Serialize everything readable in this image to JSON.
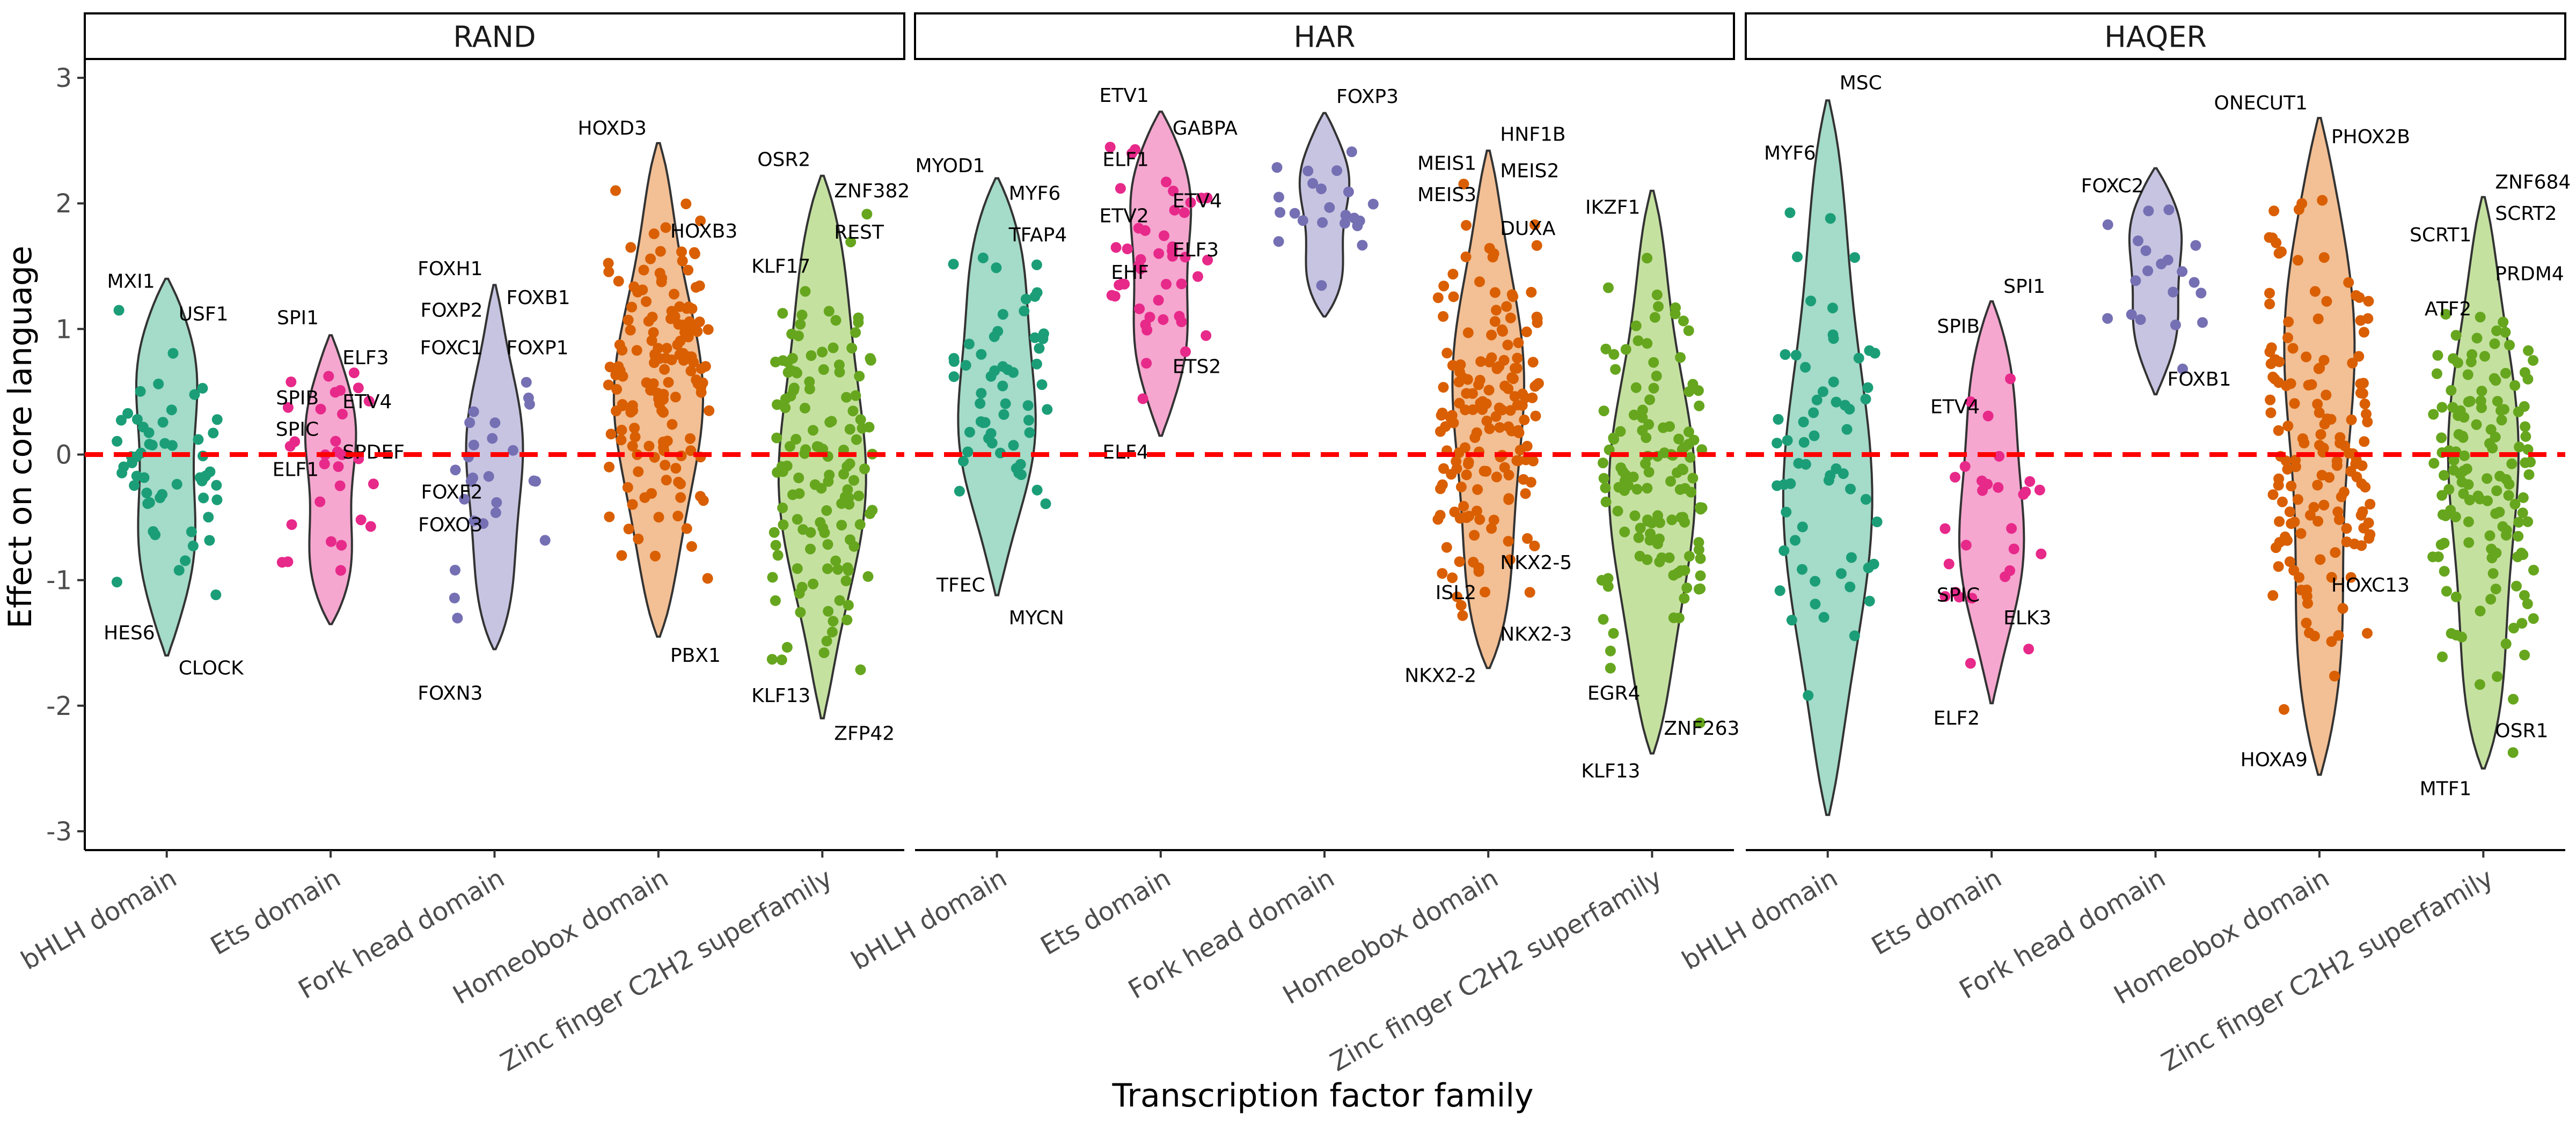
{
  "chart_data": {
    "type": "violin",
    "xlabel": "Transcription factor family",
    "ylabel": "Effect on core language",
    "ylim": [
      -3.15,
      3.15
    ],
    "yticks": [
      -3,
      -2,
      -1,
      0,
      1,
      2,
      3
    ],
    "reference_line": {
      "y": 0,
      "color": "#ff0000",
      "style": "dashed"
    },
    "grid": false,
    "categories": [
      "bHLH domain",
      "Ets domain",
      "Fork head domain",
      "Homeobox domain",
      "Zinc finger C2H2 superfamily"
    ],
    "colors": {
      "bHLH domain": "#1b9e77",
      "Ets domain": "#e7298a",
      "Fork head domain": "#7570b3",
      "Homeobox domain": "#d95f02",
      "Zinc finger C2H2 superfamily": "#66a61e"
    },
    "fill_colors": {
      "bHLH domain": "#a4dbc9",
      "Ets domain": "#f5a7cf",
      "Fork head domain": "#c7c4e2",
      "Homeobox domain": "#f3bf94",
      "Zinc finger C2H2 superfamily": "#c5e1a0"
    },
    "panels": [
      {
        "name": "RAND",
        "violins": [
          {
            "category": "bHLH domain",
            "range": [
              -1.6,
              1.4
            ],
            "points": 55,
            "labels": [
              {
                "text": "MXI1",
                "y": 1.38,
                "side": "left"
              },
              {
                "text": "USF1",
                "y": 1.12,
                "side": "right"
              },
              {
                "text": "HES6",
                "y": -1.42,
                "side": "left"
              },
              {
                "text": "CLOCK",
                "y": -1.7,
                "side": "right"
              }
            ]
          },
          {
            "category": "Ets domain",
            "range": [
              -1.35,
              0.95
            ],
            "points": 30,
            "labels": [
              {
                "text": "SPI1",
                "y": 1.09,
                "side": "left"
              },
              {
                "text": "ELF3",
                "y": 0.77,
                "side": "right"
              },
              {
                "text": "SPIB",
                "y": 0.45,
                "side": "left"
              },
              {
                "text": "ETV4",
                "y": 0.42,
                "side": "right"
              },
              {
                "text": "SPIC",
                "y": 0.2,
                "side": "left"
              },
              {
                "text": "SPDEF",
                "y": 0.02,
                "side": "right"
              },
              {
                "text": "ELF1",
                "y": -0.12,
                "side": "left"
              }
            ]
          },
          {
            "category": "Fork head domain",
            "range": [
              -1.55,
              1.35
            ],
            "points": 25,
            "labels": [
              {
                "text": "FOXH1",
                "y": 1.48,
                "side": "left"
              },
              {
                "text": "FOXB1",
                "y": 1.25,
                "side": "right"
              },
              {
                "text": "FOXP2",
                "y": 1.15,
                "side": "left"
              },
              {
                "text": "FOXC1",
                "y": 0.85,
                "side": "left"
              },
              {
                "text": "FOXP1",
                "y": 0.85,
                "side": "right"
              },
              {
                "text": "FOXF2",
                "y": -0.3,
                "side": "left"
              },
              {
                "text": "FOXO3",
                "y": -0.56,
                "side": "left"
              },
              {
                "text": "FOXN3",
                "y": -1.9,
                "side": "left"
              }
            ]
          },
          {
            "category": "Homeobox domain",
            "range": [
              -1.45,
              2.48
            ],
            "points": 150,
            "labels": [
              {
                "text": "HOXD3",
                "y": 2.6,
                "side": "left"
              },
              {
                "text": "HOXB3",
                "y": 1.78,
                "side": "right"
              },
              {
                "text": "PBX1",
                "y": -1.6,
                "side": "right"
              }
            ]
          },
          {
            "category": "Zinc finger C2H2 superfamily",
            "range": [
              -2.1,
              2.22
            ],
            "points": 130,
            "labels": [
              {
                "text": "OSR2",
                "y": 2.35,
                "side": "left"
              },
              {
                "text": "ZNF382",
                "y": 2.1,
                "side": "right"
              },
              {
                "text": "REST",
                "y": 1.77,
                "side": "right"
              },
              {
                "text": "KLF17",
                "y": 1.5,
                "side": "left"
              },
              {
                "text": "KLF13",
                "y": -1.92,
                "side": "left"
              },
              {
                "text": "ZFP42",
                "y": -2.22,
                "side": "right"
              }
            ]
          }
        ]
      },
      {
        "name": "HAR",
        "violins": [
          {
            "category": "bHLH domain",
            "range": [
              -1.12,
              2.2
            ],
            "points": 55,
            "labels": [
              {
                "text": "MYOD1",
                "y": 2.3,
                "side": "left"
              },
              {
                "text": "MYF6",
                "y": 2.08,
                "side": "right"
              },
              {
                "text": "TFAP4",
                "y": 1.75,
                "side": "right"
              },
              {
                "text": "TFEC",
                "y": -1.04,
                "side": "left"
              },
              {
                "text": "MYCN",
                "y": -1.3,
                "side": "right"
              }
            ]
          },
          {
            "category": "Ets domain",
            "range": [
              0.15,
              2.73
            ],
            "points": 45,
            "labels": [
              {
                "text": "ETV1",
                "y": 2.86,
                "side": "left"
              },
              {
                "text": "GABPA",
                "y": 2.6,
                "side": "right"
              },
              {
                "text": "ELF1",
                "y": 2.35,
                "side": "left"
              },
              {
                "text": "ETV4",
                "y": 2.02,
                "side": "right"
              },
              {
                "text": "ETV2",
                "y": 1.9,
                "side": "left"
              },
              {
                "text": "ELF3",
                "y": 1.63,
                "side": "right"
              },
              {
                "text": "EHF",
                "y": 1.45,
                "side": "left"
              },
              {
                "text": "ETS2",
                "y": 0.7,
                "side": "right"
              },
              {
                "text": "ELF4",
                "y": 0.02,
                "side": "left"
              }
            ]
          },
          {
            "category": "Fork head domain",
            "range": [
              1.1,
              2.72
            ],
            "points": 22,
            "labels": [
              {
                "text": "FOXP3",
                "y": 2.85,
                "side": "right"
              }
            ]
          },
          {
            "category": "Homeobox domain",
            "range": [
              -1.7,
              2.42
            ],
            "points": 160,
            "labels": [
              {
                "text": "HNF1B",
                "y": 2.55,
                "side": "right"
              },
              {
                "text": "MEIS1",
                "y": 2.32,
                "side": "left"
              },
              {
                "text": "MEIS2",
                "y": 2.26,
                "side": "right"
              },
              {
                "text": "MEIS3",
                "y": 2.07,
                "side": "left"
              },
              {
                "text": "DUXA",
                "y": 1.8,
                "side": "right"
              },
              {
                "text": "NKX2-5",
                "y": -0.86,
                "side": "right"
              },
              {
                "text": "ISL2",
                "y": -1.1,
                "side": "left"
              },
              {
                "text": "NKX2-3",
                "y": -1.43,
                "side": "right"
              },
              {
                "text": "NKX2-2",
                "y": -1.76,
                "side": "left"
              }
            ]
          },
          {
            "category": "Zinc finger C2H2 superfamily",
            "range": [
              -2.38,
              2.1
            ],
            "points": 125,
            "labels": [
              {
                "text": "IKZF1",
                "y": 1.97,
                "side": "left"
              },
              {
                "text": "EGR4",
                "y": -1.9,
                "side": "left"
              },
              {
                "text": "ZNF263",
                "y": -2.18,
                "side": "right"
              },
              {
                "text": "KLF13",
                "y": -2.52,
                "side": "left"
              }
            ]
          }
        ]
      },
      {
        "name": "HAQER",
        "violins": [
          {
            "category": "bHLH domain",
            "range": [
              -2.87,
              2.82
            ],
            "points": 60,
            "labels": [
              {
                "text": "MSC",
                "y": 2.96,
                "side": "right"
              },
              {
                "text": "MYF6",
                "y": 2.4,
                "side": "left"
              }
            ]
          },
          {
            "category": "Ets domain",
            "range": [
              -1.98,
              1.22
            ],
            "points": 28,
            "labels": [
              {
                "text": "SPI1",
                "y": 1.34,
                "side": "right"
              },
              {
                "text": "SPIB",
                "y": 1.02,
                "side": "left"
              },
              {
                "text": "ETV4",
                "y": 0.38,
                "side": "left"
              },
              {
                "text": "SPIC",
                "y": -1.12,
                "side": "left"
              },
              {
                "text": "ELK3",
                "y": -1.3,
                "side": "right"
              },
              {
                "text": "ELF2",
                "y": -2.1,
                "side": "left"
              }
            ]
          },
          {
            "category": "Fork head domain",
            "range": [
              0.48,
              2.28
            ],
            "points": 20,
            "labels": [
              {
                "text": "FOXC2",
                "y": 2.14,
                "side": "left"
              },
              {
                "text": "FOXB1",
                "y": 0.6,
                "side": "right"
              }
            ]
          },
          {
            "category": "Homeobox domain",
            "range": [
              -2.55,
              2.68
            ],
            "points": 150,
            "labels": [
              {
                "text": "ONECUT1",
                "y": 2.8,
                "side": "left"
              },
              {
                "text": "PHOX2B",
                "y": 2.53,
                "side": "right"
              },
              {
                "text": "HOXC13",
                "y": -1.04,
                "side": "right"
              },
              {
                "text": "HOXA9",
                "y": -2.43,
                "side": "left"
              }
            ]
          },
          {
            "category": "Zinc finger C2H2 superfamily",
            "range": [
              -2.5,
              2.05
            ],
            "points": 140,
            "labels": [
              {
                "text": "ZNF684",
                "y": 2.17,
                "side": "right"
              },
              {
                "text": "SCRT2",
                "y": 1.92,
                "side": "right"
              },
              {
                "text": "SCRT1",
                "y": 1.75,
                "side": "left"
              },
              {
                "text": "PRDM4",
                "y": 1.44,
                "side": "right"
              },
              {
                "text": "ATF2",
                "y": 1.16,
                "side": "left"
              },
              {
                "text": "OSR1",
                "y": -2.2,
                "side": "right"
              },
              {
                "text": "MTF1",
                "y": -2.66,
                "side": "left"
              }
            ]
          }
        ]
      }
    ]
  }
}
